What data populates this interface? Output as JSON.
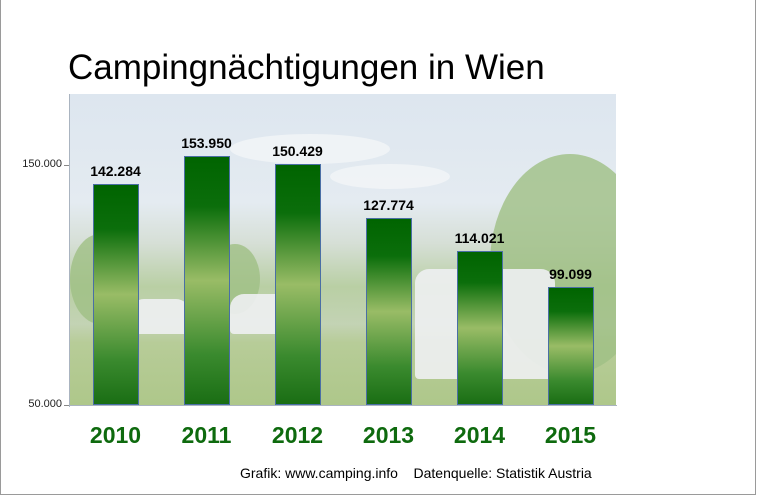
{
  "chart_data": {
    "type": "bar",
    "title": "Campingnächtigungen in Wien",
    "categories": [
      "2010",
      "2011",
      "2012",
      "2013",
      "2014",
      "2015"
    ],
    "values": [
      142284,
      153950,
      150429,
      127774,
      114021,
      99099
    ],
    "data_labels": [
      "142.284",
      "153.950",
      "150.429",
      "127.774",
      "114.021",
      "99.099"
    ],
    "yticks": [
      50000,
      150000
    ],
    "ytick_labels": [
      "50.000",
      "150.000"
    ],
    "ylim": [
      50000,
      179000
    ],
    "xlabel": "",
    "ylabel": "",
    "grid": false,
    "bar_color": "#1a7a1a",
    "category_label_color": "#0e6a0e",
    "background": "camping photo"
  },
  "footer": {
    "credit": "Grafik: www.camping.info",
    "source": "Datenquelle: Statistik Austria"
  }
}
